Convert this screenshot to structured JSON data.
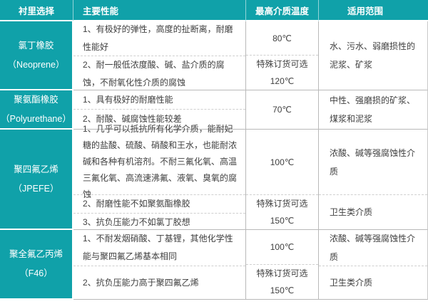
{
  "table": {
    "headers": [
      "衬里选择",
      "主要性能",
      "最高介质温度",
      "适用范围"
    ],
    "colors": {
      "accent_teal": "#10a1a9",
      "border_gray": "#b9b9b9",
      "dashed_gray": "#cfcfcf",
      "header_text": "#ffffff",
      "body_text": "#3f3f3f"
    },
    "rows": [
      {
        "name": "氯丁橡胶",
        "alias": "（Neoprene）",
        "perf_1": "1、有极好的弹性，高度的扯断离，耐磨性能好",
        "temp_1": "80℃",
        "perf_2": "2、耐一般低浓度酸、碱、盐介质的腐蚀，不耐氧化性介质的腐蚀",
        "temp_2_line1": "特殊订货可选",
        "temp_2_line2": "120℃",
        "range": "水、污水、弱磨损性的泥浆、矿浆"
      },
      {
        "name": "聚氨酯橡胶",
        "alias": "（Polyurethane）",
        "perf_1": "1、具有极好的耐磨性能",
        "perf_2": "2、耐酸、碱腐蚀性能较差",
        "temp": "70℃",
        "range": "中性、强磨损的矿浆、煤浆和泥浆"
      },
      {
        "name": "聚四氟乙烯",
        "alias": "（JPEFE）",
        "perf_1": "1、几乎可以抵抗所有化学介质，能耐妃糖的盐酸、硫酸、硝酸和王水，也能耐浓碱和各种有机溶剂。不耐三氟化氧、高温三氟化氧、高流速沸氟、液氧、臭氧的腐蚀",
        "temp_1": "100℃",
        "range_1": "浓酸、碱等强腐蚀性介质",
        "perf_2": "2、耐磨性能不如聚氨酯橡胶",
        "perf_3": "3、抗负压能力不如氯丁胶想",
        "temp_2_line1": "特殊订货可选",
        "temp_2_line2": "150℃",
        "range_2": "卫生类介质"
      },
      {
        "name": "聚全氟乙丙烯",
        "alias": "（F46）",
        "perf_1": "1、不耐发烟硝酸、丁基锂，其他化学性能与聚四氟乙烯基本相同",
        "temp_1": "100℃",
        "range_1": "浓酸、碱等强腐蚀性介质",
        "perf_2": "2、抗负压能力高于聚四氟乙烯",
        "temp_2_line1": "特殊订货可选",
        "temp_2_line2": "150℃",
        "range_2": "卫生类介质"
      }
    ]
  }
}
